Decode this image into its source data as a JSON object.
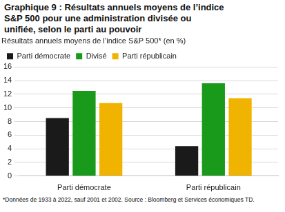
{
  "chart_data": {
    "type": "bar",
    "title": "Graphique 9 : Résultats annuels moyens de l’indice S&P 500 pour une administration divisée ou unifiée, selon le parti au pouvoir",
    "y_label": "Résultats annuels moyens de l’indice S&P 500* (en %)",
    "footnote": "*Données de 1933 à 2022, sauf 2001 et 2002. Source : Bloomberg et Services économiques TD.",
    "categories": [
      "Parti démocrate",
      "Parti républicain"
    ],
    "series": [
      {
        "name": "Parti démocrate",
        "color": "#1a1a1a",
        "values": [
          8.5,
          4.4
        ]
      },
      {
        "name": "Divisé",
        "color": "#1a9a1a",
        "values": [
          12.5,
          13.6
        ]
      },
      {
        "name": "Parti républicain",
        "color": "#f0b400",
        "values": [
          10.7,
          11.4
        ]
      }
    ],
    "ylim": [
      0,
      16
    ],
    "yticks": [
      0,
      2,
      4,
      6,
      8,
      10,
      12,
      14,
      16
    ],
    "grid": true,
    "legend": "top-left"
  }
}
